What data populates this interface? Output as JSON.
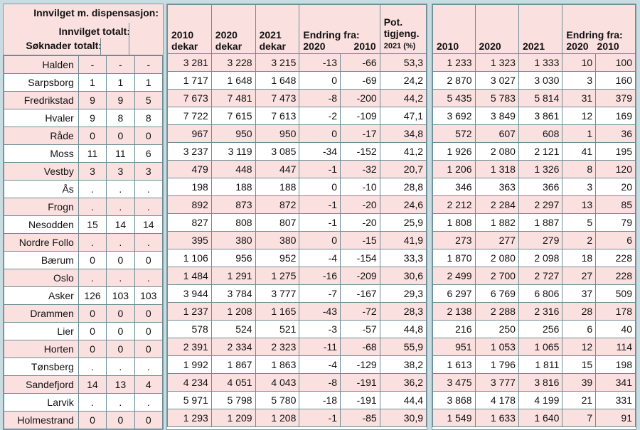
{
  "headers": {
    "left": {
      "dispensasjon": "Innvilget m. dispensasjon:",
      "innvilget": "Innvilget totalt:",
      "soknader": "Søknader totalt:"
    },
    "mid": {
      "y2010": [
        "2010",
        "dekar"
      ],
      "y2020": [
        "2020",
        "dekar"
      ],
      "y2021": [
        "2021",
        "dekar"
      ],
      "endring": "Endring fra:",
      "e2020": "2020",
      "e2010": "2010",
      "pot": [
        "Pot.",
        "tigjeng."
      ],
      "pot_sub": "2021 (%)"
    },
    "right": {
      "y2010": "2010",
      "y2020": "2020",
      "y2021": "2021",
      "endring": "Endring fra:",
      "e2020": "2020",
      "e2010": "2010"
    }
  },
  "rows": [
    {
      "kommune": "Halden",
      "s": "-",
      "i": "-",
      "d": "-",
      "a2010": "3 281",
      "a2020": "3 228",
      "a2021": "3 215",
      "e2020": "-13",
      "e2010": "-66",
      "pot": "53,3",
      "b2010": "1 233",
      "b2020": "1 323",
      "b2021": "1 333",
      "f2020": "10",
      "f2010": "100"
    },
    {
      "kommune": "Sarpsborg",
      "s": "1",
      "i": "1",
      "d": "1",
      "a2010": "1 717",
      "a2020": "1 648",
      "a2021": "1 648",
      "e2020": "0",
      "e2010": "-69",
      "pot": "24,2",
      "b2010": "2 870",
      "b2020": "3 027",
      "b2021": "3 030",
      "f2020": "3",
      "f2010": "160"
    },
    {
      "kommune": "Fredrikstad",
      "s": "9",
      "i": "9",
      "d": "5",
      "a2010": "7 673",
      "a2020": "7 481",
      "a2021": "7 473",
      "e2020": "-8",
      "e2010": "-200",
      "pot": "44,2",
      "b2010": "5 435",
      "b2020": "5 783",
      "b2021": "5 814",
      "f2020": "31",
      "f2010": "379"
    },
    {
      "kommune": "Hvaler",
      "s": "9",
      "i": "8",
      "d": "8",
      "a2010": "7 722",
      "a2020": "7 615",
      "a2021": "7 613",
      "e2020": "-2",
      "e2010": "-109",
      "pot": "47,1",
      "b2010": "3 692",
      "b2020": "3 849",
      "b2021": "3 861",
      "f2020": "12",
      "f2010": "169"
    },
    {
      "kommune": "Råde",
      "s": "0",
      "i": "0",
      "d": "0",
      "a2010": "967",
      "a2020": "950",
      "a2021": "950",
      "e2020": "0",
      "e2010": "-17",
      "pot": "34,8",
      "b2010": "572",
      "b2020": "607",
      "b2021": "608",
      "f2020": "1",
      "f2010": "36"
    },
    {
      "kommune": "Moss",
      "s": "11",
      "i": "11",
      "d": "6",
      "a2010": "3 237",
      "a2020": "3 119",
      "a2021": "3 085",
      "e2020": "-34",
      "e2010": "-152",
      "pot": "41,2",
      "b2010": "1 926",
      "b2020": "2 080",
      "b2021": "2 121",
      "f2020": "41",
      "f2010": "195"
    },
    {
      "kommune": "Vestby",
      "s": "3",
      "i": "3",
      "d": "3",
      "a2010": "479",
      "a2020": "448",
      "a2021": "447",
      "e2020": "-1",
      "e2010": "-32",
      "pot": "20,7",
      "b2010": "1 206",
      "b2020": "1 318",
      "b2021": "1 326",
      "f2020": "8",
      "f2010": "120"
    },
    {
      "kommune": "Ås",
      "s": ".",
      "i": ".",
      "d": ".",
      "a2010": "198",
      "a2020": "188",
      "a2021": "188",
      "e2020": "0",
      "e2010": "-10",
      "pot": "28,8",
      "b2010": "346",
      "b2020": "363",
      "b2021": "366",
      "f2020": "3",
      "f2010": "20"
    },
    {
      "kommune": "Frogn",
      "s": ".",
      "i": ".",
      "d": ".",
      "a2010": "892",
      "a2020": "873",
      "a2021": "872",
      "e2020": "-1",
      "e2010": "-20",
      "pot": "24,6",
      "b2010": "2 212",
      "b2020": "2 284",
      "b2021": "2 297",
      "f2020": "13",
      "f2010": "85"
    },
    {
      "kommune": "Nesodden",
      "s": "15",
      "i": "14",
      "d": "14",
      "a2010": "827",
      "a2020": "808",
      "a2021": "807",
      "e2020": "-1",
      "e2010": "-20",
      "pot": "25,9",
      "b2010": "1 808",
      "b2020": "1 882",
      "b2021": "1 887",
      "f2020": "5",
      "f2010": "79"
    },
    {
      "kommune": "Nordre Follo",
      "s": ".",
      "i": ".",
      "d": ".",
      "a2010": "395",
      "a2020": "380",
      "a2021": "380",
      "e2020": "0",
      "e2010": "-15",
      "pot": "41,9",
      "b2010": "273",
      "b2020": "277",
      "b2021": "279",
      "f2020": "2",
      "f2010": "6"
    },
    {
      "kommune": "Bærum",
      "s": "0",
      "i": "0",
      "d": "0",
      "a2010": "1 106",
      "a2020": "956",
      "a2021": "952",
      "e2020": "-4",
      "e2010": "-154",
      "pot": "33,3",
      "b2010": "1 870",
      "b2020": "2 080",
      "b2021": "2 098",
      "f2020": "18",
      "f2010": "228"
    },
    {
      "kommune": "Oslo",
      "s": ".",
      "i": ".",
      "d": ".",
      "a2010": "1 484",
      "a2020": "1 291",
      "a2021": "1 275",
      "e2020": "-16",
      "e2010": "-209",
      "pot": "30,6",
      "b2010": "2 499",
      "b2020": "2 700",
      "b2021": "2 727",
      "f2020": "27",
      "f2010": "228"
    },
    {
      "kommune": "Asker",
      "s": "126",
      "i": "103",
      "d": "103",
      "a2010": "3 944",
      "a2020": "3 784",
      "a2021": "3 777",
      "e2020": "-7",
      "e2010": "-167",
      "pot": "29,3",
      "b2010": "6 297",
      "b2020": "6 769",
      "b2021": "6 806",
      "f2020": "37",
      "f2010": "509"
    },
    {
      "kommune": "Drammen",
      "s": "0",
      "i": "0",
      "d": "0",
      "a2010": "1 237",
      "a2020": "1 208",
      "a2021": "1 165",
      "e2020": "-43",
      "e2010": "-72",
      "pot": "28,3",
      "b2010": "2 138",
      "b2020": "2 288",
      "b2021": "2 316",
      "f2020": "28",
      "f2010": "178"
    },
    {
      "kommune": "Lier",
      "s": "0",
      "i": "0",
      "d": "0",
      "a2010": "578",
      "a2020": "524",
      "a2021": "521",
      "e2020": "-3",
      "e2010": "-57",
      "pot": "44,8",
      "b2010": "216",
      "b2020": "250",
      "b2021": "256",
      "f2020": "6",
      "f2010": "40"
    },
    {
      "kommune": "Horten",
      "s": "0",
      "i": "0",
      "d": "0",
      "a2010": "2 391",
      "a2020": "2 334",
      "a2021": "2 323",
      "e2020": "-11",
      "e2010": "-68",
      "pot": "55,9",
      "b2010": "951",
      "b2020": "1 053",
      "b2021": "1 065",
      "f2020": "12",
      "f2010": "114"
    },
    {
      "kommune": "Tønsberg",
      "s": ".",
      "i": ".",
      "d": ".",
      "a2010": "1 992",
      "a2020": "1 867",
      "a2021": "1 863",
      "e2020": "-4",
      "e2010": "-129",
      "pot": "38,2",
      "b2010": "1 613",
      "b2020": "1 796",
      "b2021": "1 811",
      "f2020": "15",
      "f2010": "198"
    },
    {
      "kommune": "Sandefjord",
      "s": "14",
      "i": "13",
      "d": "4",
      "a2010": "4 234",
      "a2020": "4 051",
      "a2021": "4 043",
      "e2020": "-8",
      "e2010": "-191",
      "pot": "36,2",
      "b2010": "3 475",
      "b2020": "3 777",
      "b2021": "3 816",
      "f2020": "39",
      "f2010": "341"
    },
    {
      "kommune": "Larvik",
      "s": ".",
      "i": ".",
      "d": ".",
      "a2010": "5 971",
      "a2020": "5 798",
      "a2021": "5 780",
      "e2020": "-18",
      "e2010": "-191",
      "pot": "44,4",
      "b2010": "3 868",
      "b2020": "4 178",
      "b2021": "4 199",
      "f2020": "21",
      "f2010": "331"
    },
    {
      "kommune": "Holmestrand",
      "s": "0",
      "i": "0",
      "d": "0",
      "a2010": "1 293",
      "a2020": "1 209",
      "a2021": "1 208",
      "e2020": "-1",
      "e2010": "-85",
      "pot": "30,9",
      "b2010": "1 549",
      "b2020": "1 633",
      "b2021": "1 640",
      "f2020": "7",
      "f2010": "91"
    }
  ]
}
